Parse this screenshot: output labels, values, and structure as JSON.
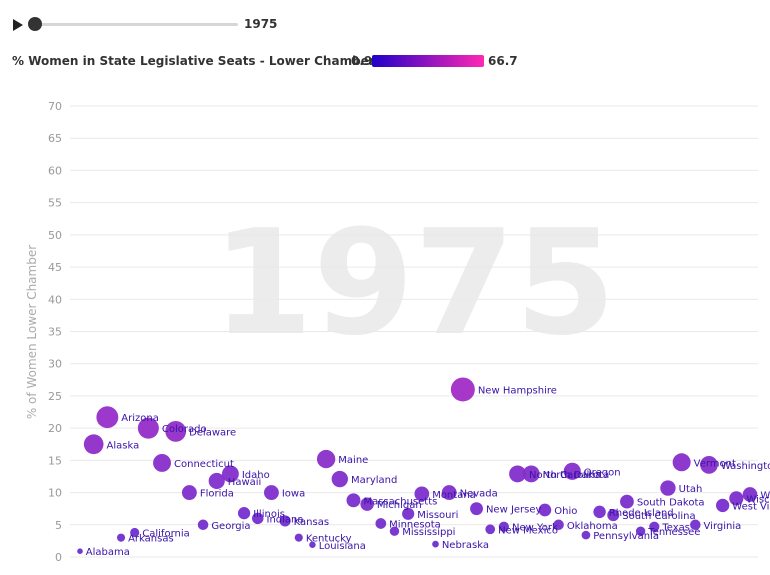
{
  "controls": {
    "play_icon": "play-icon",
    "current_year": "1975",
    "slider_position": 0.0
  },
  "legend": {
    "title": "% Women in State Legislative Seats - Lower Chambers",
    "min_label": "0.9",
    "max_label": "66.7",
    "color_low": "#1f00c8",
    "color_high": "#ff28b4"
  },
  "chart_data": {
    "type": "scatter",
    "title": "",
    "xlabel": "",
    "ylabel": "% of Women Lower Chamber",
    "watermark": "1975",
    "ylim": [
      0,
      70
    ],
    "yticks": [
      0,
      5,
      10,
      15,
      20,
      25,
      30,
      35,
      40,
      45,
      50,
      55,
      60,
      65,
      70
    ],
    "grid": true,
    "legend_placement": "top",
    "x_axis_shown": false,
    "point_color": "#6a2fd0",
    "label_color": "#3a12a8",
    "point_data": [
      {
        "name": "Alabama",
        "x": 0,
        "y": 0.9
      },
      {
        "name": "Alaska",
        "x": 1,
        "y": 17.5
      },
      {
        "name": "Arizona",
        "x": 2,
        "y": 21.7
      },
      {
        "name": "Arkansas",
        "x": 3,
        "y": 3.0
      },
      {
        "name": "California",
        "x": 4,
        "y": 3.8
      },
      {
        "name": "Colorado",
        "x": 5,
        "y": 20.0
      },
      {
        "name": "Connecticut",
        "x": 6,
        "y": 14.6
      },
      {
        "name": "Delaware",
        "x": 7,
        "y": 19.5
      },
      {
        "name": "Florida",
        "x": 8,
        "y": 10.0
      },
      {
        "name": "Georgia",
        "x": 9,
        "y": 5.0
      },
      {
        "name": "Hawaii",
        "x": 10,
        "y": 11.8
      },
      {
        "name": "Idaho",
        "x": 11,
        "y": 12.9
      },
      {
        "name": "Illinois",
        "x": 12,
        "y": 6.8
      },
      {
        "name": "Indiana",
        "x": 13,
        "y": 6.0
      },
      {
        "name": "Iowa",
        "x": 14,
        "y": 10.0
      },
      {
        "name": "Kansas",
        "x": 15,
        "y": 5.6
      },
      {
        "name": "Kentucky",
        "x": 16,
        "y": 3.0
      },
      {
        "name": "Louisiana",
        "x": 17,
        "y": 1.9
      },
      {
        "name": "Maine",
        "x": 18,
        "y": 15.2
      },
      {
        "name": "Maryland",
        "x": 19,
        "y": 12.1
      },
      {
        "name": "Massachusetts",
        "x": 20,
        "y": 8.8
      },
      {
        "name": "Michigan",
        "x": 21,
        "y": 8.2
      },
      {
        "name": "Minnesota",
        "x": 22,
        "y": 5.2
      },
      {
        "name": "Mississippi",
        "x": 23,
        "y": 4.0
      },
      {
        "name": "Missouri",
        "x": 24,
        "y": 6.7
      },
      {
        "name": "Montana",
        "x": 25,
        "y": 9.8
      },
      {
        "name": "Nebraska",
        "x": 26,
        "y": 2.0
      },
      {
        "name": "Nevada",
        "x": 27,
        "y": 10.0
      },
      {
        "name": "New Hampshire",
        "x": 28,
        "y": 26.0
      },
      {
        "name": "New Jersey",
        "x": 29,
        "y": 7.5
      },
      {
        "name": "New Mexico",
        "x": 30,
        "y": 4.3
      },
      {
        "name": "New York",
        "x": 31,
        "y": 4.7
      },
      {
        "name": "North Carolina",
        "x": 32,
        "y": 12.9
      },
      {
        "name": "North Dakota",
        "x": 33,
        "y": 12.9
      },
      {
        "name": "Ohio",
        "x": 34,
        "y": 7.3
      },
      {
        "name": "Oklahoma",
        "x": 35,
        "y": 5.0
      },
      {
        "name": "Oregon",
        "x": 36,
        "y": 13.3
      },
      {
        "name": "Pennsylvania",
        "x": 37,
        "y": 3.4
      },
      {
        "name": "Rhode Island",
        "x": 38,
        "y": 7.0
      },
      {
        "name": "South Carolina",
        "x": 39,
        "y": 6.5
      },
      {
        "name": "South Dakota",
        "x": 40,
        "y": 8.6
      },
      {
        "name": "Tennessee",
        "x": 41,
        "y": 4.0
      },
      {
        "name": "Texas",
        "x": 42,
        "y": 4.7
      },
      {
        "name": "Utah",
        "x": 43,
        "y": 10.7
      },
      {
        "name": "Vermont",
        "x": 44,
        "y": 14.7
      },
      {
        "name": "Virginia",
        "x": 45,
        "y": 5.0
      },
      {
        "name": "Washington",
        "x": 46,
        "y": 14.3
      },
      {
        "name": "West Virginia",
        "x": 47,
        "y": 8.0
      },
      {
        "name": "Wisconsin",
        "x": 48,
        "y": 9.1
      },
      {
        "name": "Wyoming",
        "x": 49,
        "y": 9.7
      }
    ]
  }
}
